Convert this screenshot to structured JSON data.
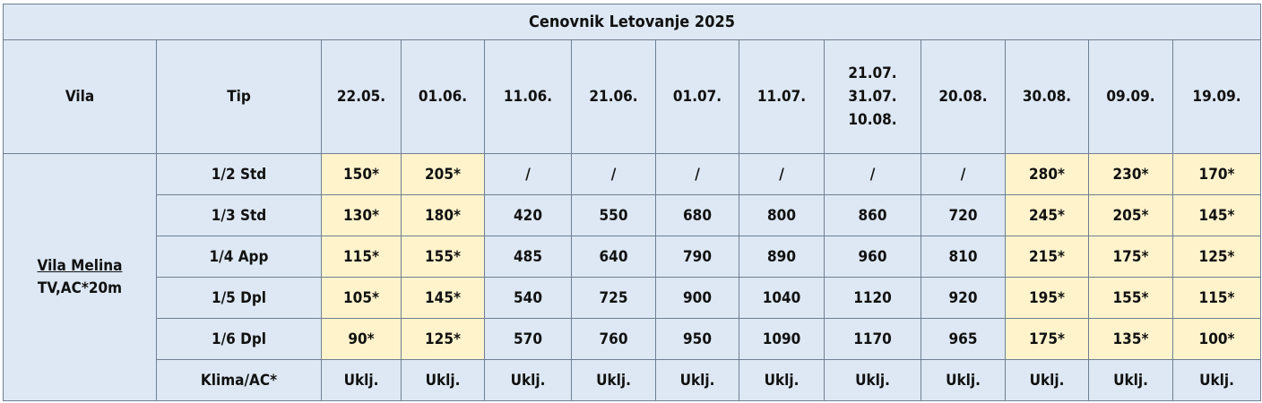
{
  "title": "Cenovnik Letovanje 2025",
  "headers": {
    "vila": "Vila",
    "tip": "Tip",
    "dates": [
      "22.05.",
      "01.06.",
      "11.06.",
      "21.06.",
      "01.07.",
      "11.07.",
      "21.07.\n31.07.\n10.08.",
      "20.08.",
      "30.08.",
      "09.09.",
      "19.09."
    ]
  },
  "vila": {
    "name": "Vila Melina",
    "details": "TV,AC*20m"
  },
  "rows": [
    {
      "tip": "1/2 Std",
      "values": [
        "150*",
        "205*",
        "/",
        "/",
        "/",
        "/",
        "/",
        "/",
        "280*",
        "230*",
        "170*"
      ]
    },
    {
      "tip": "1/3 Std",
      "values": [
        "130*",
        "180*",
        "420",
        "550",
        "680",
        "800",
        "860",
        "720",
        "245*",
        "205*",
        "145*"
      ]
    },
    {
      "tip": "1/4 App",
      "values": [
        "115*",
        "155*",
        "485",
        "640",
        "790",
        "890",
        "960",
        "810",
        "215*",
        "175*",
        "125*"
      ]
    },
    {
      "tip": "1/5 Dpl",
      "values": [
        "105*",
        "145*",
        "540",
        "725",
        "900",
        "1040",
        "1120",
        "920",
        "195*",
        "155*",
        "115*"
      ]
    },
    {
      "tip": "1/6 Dpl",
      "values": [
        "90*",
        "125*",
        "570",
        "760",
        "950",
        "1090",
        "1170",
        "965",
        "175*",
        "135*",
        "100*"
      ]
    },
    {
      "tip": "Klima/AC*",
      "values": [
        "Uklj.",
        "Uklj.",
        "Uklj.",
        "Uklj.",
        "Uklj.",
        "Uklj.",
        "Uklj.",
        "Uklj.",
        "Uklj.",
        "Uklj.",
        "Uklj."
      ]
    }
  ],
  "colors": {
    "header_bg": "#dde8f4",
    "highlight_bg": "#fff3cc",
    "border": "#6f7f92"
  }
}
